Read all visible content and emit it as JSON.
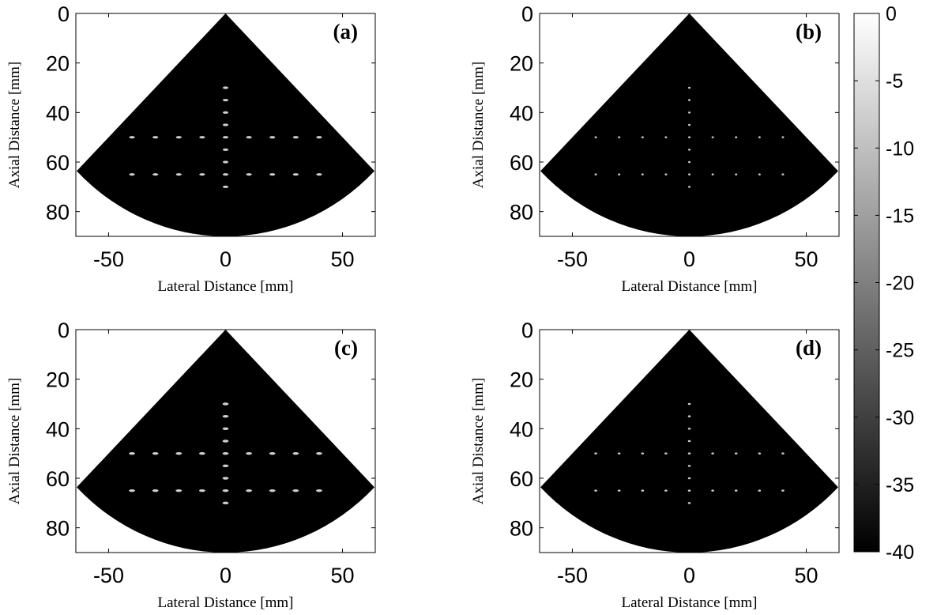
{
  "colors": {
    "background": "#ffffff",
    "sector_fill": "#000000",
    "scatterer": "#e6e6e6",
    "axis": "#000000"
  },
  "colormap": "gray",
  "chart_data": [
    {
      "type": "heatmap",
      "panel_label": "(a)",
      "xlabel": "Lateral Distance [mm]",
      "ylabel": "Axial Distance [mm]",
      "xlim": [
        -64,
        64
      ],
      "ylim": [
        90,
        0
      ],
      "x_ticks": [
        "-50",
        "0",
        "50"
      ],
      "y_ticks": [
        "0",
        "20",
        "40",
        "60",
        "80"
      ],
      "sector": {
        "apex": [
          0,
          0
        ],
        "radius_mm": 90,
        "half_angle_deg": 45
      },
      "scatterers": {
        "vertical_x": 0,
        "vertical_depths": [
          30,
          35,
          40,
          45,
          50,
          55,
          60,
          65,
          70
        ],
        "horizontal_depths": [
          50,
          65
        ],
        "horizontal_x": [
          -40,
          -30,
          -20,
          -10,
          10,
          20,
          30,
          40
        ],
        "lateral_width_mm": 2.4,
        "axial_width_mm": 1.0
      }
    },
    {
      "type": "heatmap",
      "panel_label": "(b)",
      "xlabel": "Lateral Distance [mm]",
      "ylabel": "Axial Distance [mm]",
      "xlim": [
        -64,
        64
      ],
      "ylim": [
        90,
        0
      ],
      "x_ticks": [
        "-50",
        "0",
        "50"
      ],
      "y_ticks": [
        "0",
        "20",
        "40",
        "60",
        "80"
      ],
      "sector": {
        "apex": [
          0,
          0
        ],
        "radius_mm": 90,
        "half_angle_deg": 45
      },
      "scatterers": {
        "vertical_x": 0,
        "vertical_depths": [
          30,
          35,
          40,
          45,
          50,
          55,
          60,
          65,
          70
        ],
        "horizontal_depths": [
          50,
          65
        ],
        "horizontal_x": [
          -40,
          -30,
          -20,
          -10,
          10,
          20,
          30,
          40
        ],
        "lateral_width_mm": 1.0,
        "axial_width_mm": 0.8
      }
    },
    {
      "type": "heatmap",
      "panel_label": "(c)",
      "xlabel": "Lateral Distance [mm]",
      "ylabel": "Axial Distance [mm]",
      "xlim": [
        -64,
        64
      ],
      "ylim": [
        90,
        0
      ],
      "x_ticks": [
        "-50",
        "0",
        "50"
      ],
      "y_ticks": [
        "0",
        "20",
        "40",
        "60",
        "80"
      ],
      "sector": {
        "apex": [
          0,
          0
        ],
        "radius_mm": 90,
        "half_angle_deg": 45
      },
      "scatterers": {
        "vertical_x": 0,
        "vertical_depths": [
          30,
          35,
          40,
          45,
          50,
          55,
          60,
          65,
          70
        ],
        "horizontal_depths": [
          50,
          65
        ],
        "horizontal_x": [
          -40,
          -30,
          -20,
          -10,
          10,
          20,
          30,
          40
        ],
        "lateral_width_mm": 2.6,
        "axial_width_mm": 1.1
      }
    },
    {
      "type": "heatmap",
      "panel_label": "(d)",
      "xlabel": "Lateral Distance [mm]",
      "ylabel": "Axial Distance [mm]",
      "xlim": [
        -64,
        64
      ],
      "ylim": [
        90,
        0
      ],
      "x_ticks": [
        "-50",
        "0",
        "50"
      ],
      "y_ticks": [
        "0",
        "20",
        "40",
        "60",
        "80"
      ],
      "sector": {
        "apex": [
          0,
          0
        ],
        "radius_mm": 90,
        "half_angle_deg": 45
      },
      "scatterers": {
        "vertical_x": 0,
        "vertical_depths": [
          30,
          35,
          40,
          45,
          50,
          55,
          60,
          65,
          70
        ],
        "horizontal_depths": [
          50,
          65
        ],
        "horizontal_x": [
          -40,
          -30,
          -20,
          -10,
          10,
          20,
          30,
          40
        ],
        "lateral_width_mm": 1.2,
        "axial_width_mm": 0.8
      }
    }
  ],
  "colorbar": {
    "range": [
      -40,
      0
    ],
    "ticks": [
      "0",
      "-5",
      "-10",
      "-15",
      "-20",
      "-25",
      "-30",
      "-35",
      "-40"
    ]
  }
}
